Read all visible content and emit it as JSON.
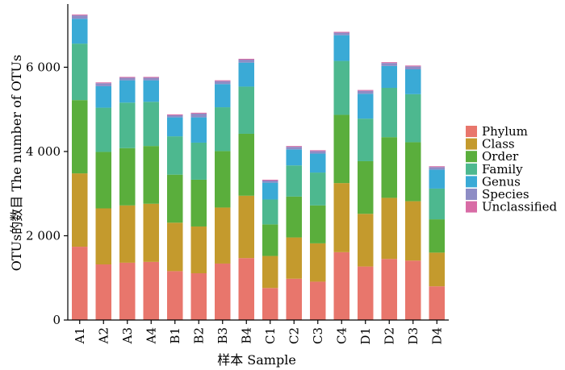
{
  "chart_data": {
    "type": "bar",
    "stacked": true,
    "categories": [
      "A1",
      "A2",
      "A3",
      "A4",
      "B1",
      "B2",
      "B3",
      "B4",
      "C1",
      "C2",
      "C3",
      "C4",
      "D1",
      "D2",
      "D3",
      "D4"
    ],
    "series": [
      {
        "name": "Phylum",
        "color": "#E8766C",
        "values": [
          1740,
          1320,
          1360,
          1380,
          1160,
          1110,
          1340,
          1470,
          760,
          980,
          910,
          1610,
          1270,
          1450,
          1410,
          800
        ]
      },
      {
        "name": "Class",
        "color": "#C49A2D",
        "values": [
          1740,
          1330,
          1360,
          1380,
          1150,
          1110,
          1330,
          1480,
          760,
          980,
          910,
          1640,
          1250,
          1450,
          1410,
          800
        ]
      },
      {
        "name": "Order",
        "color": "#5AAE3C",
        "values": [
          1740,
          1340,
          1360,
          1370,
          1140,
          1110,
          1340,
          1470,
          750,
          970,
          900,
          1620,
          1250,
          1440,
          1400,
          790
        ]
      },
      {
        "name": "Family",
        "color": "#4DB88F",
        "values": [
          1340,
          1050,
          1080,
          1050,
          910,
          880,
          1040,
          1120,
          590,
          740,
          780,
          1280,
          1010,
          1170,
          1140,
          730
        ]
      },
      {
        "name": "Genus",
        "color": "#3AAAD6",
        "values": [
          590,
          510,
          530,
          510,
          450,
          600,
          550,
          570,
          400,
          380,
          450,
          610,
          590,
          520,
          590,
          450
        ]
      },
      {
        "name": "Species",
        "color": "#8E8DC5",
        "values": [
          80,
          70,
          60,
          60,
          50,
          90,
          70,
          70,
          50,
          60,
          60,
          60,
          70,
          70,
          70,
          60
        ]
      },
      {
        "name": "Unclassified",
        "color": "#D86BA5",
        "values": [
          20,
          20,
          20,
          20,
          20,
          20,
          20,
          20,
          20,
          20,
          20,
          20,
          20,
          20,
          20,
          20
        ]
      }
    ],
    "ylim": [
      0,
      7500
    ],
    "yticks": [
      {
        "value": 0,
        "label": "0"
      },
      {
        "value": 2000,
        "label": "2 000"
      },
      {
        "value": 4000,
        "label": "4 000"
      },
      {
        "value": 6000,
        "label": "6 000"
      }
    ],
    "xlabel": "样本  Sample",
    "ylabel": "OTUs的数目  The number of OTUs",
    "legend_position": "right",
    "grid": false
  }
}
